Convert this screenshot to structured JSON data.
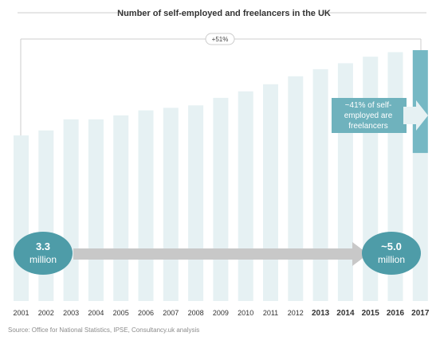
{
  "chart_data": {
    "type": "bar",
    "title": "Number of self-employed and freelancers in the UK",
    "categories": [
      "2001",
      "2002",
      "2003",
      "2004",
      "2005",
      "2006",
      "2007",
      "2008",
      "2009",
      "2010",
      "2011",
      "2012",
      "2013",
      "2014",
      "2015",
      "2016",
      "2017"
    ],
    "values": [
      3.3,
      3.4,
      3.62,
      3.62,
      3.7,
      3.8,
      3.85,
      3.9,
      4.05,
      4.18,
      4.32,
      4.48,
      4.62,
      4.74,
      4.87,
      4.96,
      5.0
    ],
    "highlight_segment": {
      "category": "2017",
      "value": 2.05
    },
    "ylim": [
      0,
      5.0
    ],
    "xlabel": "",
    "ylabel": "",
    "grid": false,
    "legend": "none",
    "growth_label": "+51%",
    "start_bubble": {
      "value": "3.3",
      "unit": "million"
    },
    "end_bubble": {
      "value": "~5.0",
      "unit": "million"
    },
    "callout_lines": [
      "~41% of self-",
      "employed are",
      "freelancers"
    ],
    "colors": {
      "bar": "#e6f1f3",
      "highlight": "#75b8c4",
      "bubble": "#4e9ca8",
      "arrow": "#c8c8c8",
      "callout": "#6fb2bd",
      "callout_arrow": "#e6f1f3",
      "rule": "#cccccc"
    }
  },
  "source": "Source: Office for National Statistics, IPSE, Consultancy.uk analysis"
}
